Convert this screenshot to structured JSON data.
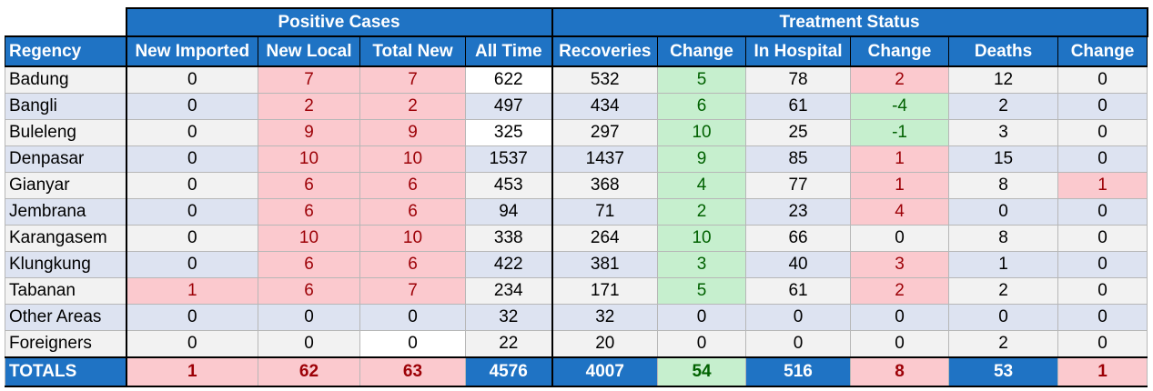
{
  "headers": {
    "group_positive": "Positive Cases",
    "group_treatment": "Treatment Status",
    "columns": [
      "Regency",
      "New Imported",
      "New Local",
      "Total New",
      "All Time",
      "Recoveries",
      "Change",
      "In Hospital",
      "Change",
      "Deaths",
      "Change"
    ]
  },
  "rows": [
    [
      "Badung",
      "0",
      "7",
      "7",
      "622",
      "532",
      "5",
      "78",
      "2",
      "12",
      "0"
    ],
    [
      "Bangli",
      "0",
      "2",
      "2",
      "497",
      "434",
      "6",
      "61",
      "-4",
      "2",
      "0"
    ],
    [
      "Buleleng",
      "0",
      "9",
      "9",
      "325",
      "297",
      "10",
      "25",
      "-1",
      "3",
      "0"
    ],
    [
      "Denpasar",
      "0",
      "10",
      "10",
      "1537",
      "1437",
      "9",
      "85",
      "1",
      "15",
      "0"
    ],
    [
      "Gianyar",
      "0",
      "6",
      "6",
      "453",
      "368",
      "4",
      "77",
      "1",
      "8",
      "1"
    ],
    [
      "Jembrana",
      "0",
      "6",
      "6",
      "94",
      "71",
      "2",
      "23",
      "4",
      "0",
      "0"
    ],
    [
      "Karangasem",
      "0",
      "10",
      "10",
      "338",
      "264",
      "10",
      "66",
      "0",
      "8",
      "0"
    ],
    [
      "Klungkung",
      "0",
      "6",
      "6",
      "422",
      "381",
      "3",
      "40",
      "3",
      "1",
      "0"
    ],
    [
      "Tabanan",
      "1",
      "6",
      "7",
      "234",
      "171",
      "5",
      "61",
      "2",
      "2",
      "0"
    ],
    [
      "Other Areas",
      "0",
      "0",
      "0",
      "32",
      "32",
      "0",
      "0",
      "0",
      "0",
      "0"
    ],
    [
      "Foreigners",
      "0",
      "0",
      "0",
      "22",
      "20",
      "0",
      "0",
      "0",
      "2",
      "0"
    ]
  ],
  "totals": [
    "TOTALS",
    "1",
    "62",
    "63",
    "4576",
    "4007",
    "54",
    "516",
    "8",
    "53",
    "1"
  ],
  "colors": {
    "header_blue": "#1f73c4",
    "pos_bg": "#fbc9ce",
    "pos_text": "#9c0006",
    "neg_bg": "#c6efce",
    "neg_text": "#006100"
  }
}
